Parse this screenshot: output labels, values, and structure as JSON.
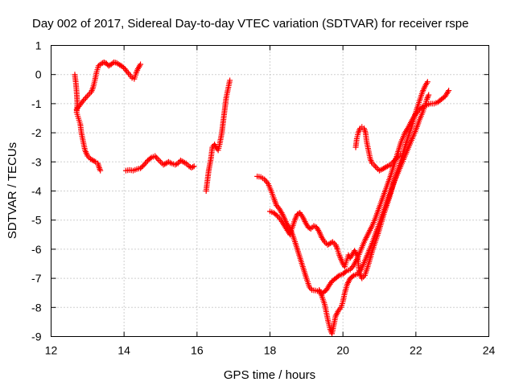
{
  "chart_data": {
    "type": "scatter",
    "title": "Day 002 of 2017, Sidereal Day-to-day VTEC variation (SDTVAR) for receiver rspe",
    "xlabel": "GPS time / hours",
    "ylabel": "SDTVAR / TECUs",
    "xlim": [
      12,
      24
    ],
    "ylim": [
      -9,
      1
    ],
    "xticks": [
      12,
      14,
      16,
      18,
      20,
      22,
      24
    ],
    "yticks": [
      1,
      0,
      -1,
      -2,
      -3,
      -4,
      -5,
      -6,
      -7,
      -8,
      -9
    ],
    "grid": true,
    "marker": "plus",
    "color": "#ff0000",
    "series": [
      {
        "values": [
          [
            12.65,
            0.0
          ],
          [
            12.68,
            -0.3
          ],
          [
            12.7,
            -0.6
          ],
          [
            12.72,
            -1.0
          ],
          [
            12.7,
            -1.3
          ],
          [
            12.75,
            -1.5
          ],
          [
            12.8,
            -1.7
          ],
          [
            12.83,
            -2.0
          ],
          [
            12.88,
            -2.3
          ],
          [
            12.93,
            -2.6
          ],
          [
            13.0,
            -2.8
          ],
          [
            13.08,
            -2.9
          ],
          [
            13.15,
            -2.95
          ],
          [
            13.22,
            -3.0
          ],
          [
            13.28,
            -3.05
          ],
          [
            13.32,
            -3.2
          ],
          [
            13.35,
            -3.3
          ],
          [
            12.7,
            -1.2
          ],
          [
            12.76,
            -1.1
          ],
          [
            12.82,
            -1.0
          ],
          [
            12.88,
            -0.9
          ],
          [
            12.95,
            -0.8
          ],
          [
            13.02,
            -0.7
          ],
          [
            13.1,
            -0.6
          ],
          [
            13.15,
            -0.45
          ],
          [
            13.2,
            -0.2
          ],
          [
            13.25,
            0.1
          ],
          [
            13.3,
            0.3
          ],
          [
            13.38,
            0.38
          ],
          [
            13.45,
            0.42
          ],
          [
            13.52,
            0.38
          ],
          [
            13.58,
            0.3
          ],
          [
            13.65,
            0.35
          ],
          [
            13.72,
            0.42
          ],
          [
            13.8,
            0.4
          ],
          [
            13.88,
            0.33
          ],
          [
            13.95,
            0.28
          ],
          [
            14.02,
            0.2
          ],
          [
            14.08,
            0.1
          ],
          [
            14.15,
            0.0
          ],
          [
            14.22,
            -0.12
          ],
          [
            14.28,
            -0.15
          ],
          [
            14.33,
            0.05
          ],
          [
            14.38,
            0.2
          ],
          [
            14.45,
            0.35
          ]
        ]
      },
      {
        "values": [
          [
            14.05,
            -3.3
          ],
          [
            14.15,
            -3.28
          ],
          [
            14.25,
            -3.3
          ],
          [
            14.35,
            -3.25
          ],
          [
            14.45,
            -3.22
          ],
          [
            14.55,
            -3.1
          ],
          [
            14.65,
            -2.95
          ],
          [
            14.75,
            -2.85
          ],
          [
            14.85,
            -2.8
          ],
          [
            14.92,
            -2.9
          ],
          [
            15.0,
            -3.0
          ],
          [
            15.08,
            -3.1
          ],
          [
            15.15,
            -3.05
          ],
          [
            15.22,
            -3.0
          ],
          [
            15.3,
            -3.05
          ],
          [
            15.4,
            -3.1
          ],
          [
            15.48,
            -3.05
          ],
          [
            15.55,
            -2.95
          ],
          [
            15.62,
            -3.0
          ],
          [
            15.7,
            -3.05
          ],
          [
            15.78,
            -3.15
          ],
          [
            15.85,
            -3.2
          ],
          [
            15.92,
            -3.15
          ]
        ]
      },
      {
        "values": [
          [
            16.25,
            -4.0
          ],
          [
            16.28,
            -3.7
          ],
          [
            16.32,
            -3.3
          ],
          [
            16.38,
            -2.9
          ],
          [
            16.42,
            -2.5
          ],
          [
            16.48,
            -2.4
          ],
          [
            16.52,
            -2.5
          ],
          [
            16.58,
            -2.6
          ],
          [
            16.62,
            -2.4
          ],
          [
            16.68,
            -2.0
          ],
          [
            16.72,
            -1.6
          ],
          [
            16.76,
            -1.2
          ],
          [
            16.8,
            -0.8
          ],
          [
            16.85,
            -0.5
          ],
          [
            16.9,
            -0.2
          ]
        ]
      },
      {
        "values": [
          [
            17.65,
            -3.5
          ],
          [
            17.75,
            -3.52
          ],
          [
            17.85,
            -3.6
          ],
          [
            17.95,
            -3.75
          ],
          [
            18.05,
            -4.05
          ],
          [
            18.12,
            -4.3
          ],
          [
            18.18,
            -4.5
          ],
          [
            18.25,
            -4.6
          ],
          [
            18.32,
            -4.75
          ],
          [
            18.38,
            -4.9
          ],
          [
            18.45,
            -5.1
          ],
          [
            18.5,
            -5.2
          ],
          [
            18.55,
            -5.3
          ],
          [
            18.62,
            -5.5
          ],
          [
            18.7,
            -5.8
          ],
          [
            18.8,
            -6.2
          ],
          [
            18.9,
            -6.6
          ],
          [
            19.0,
            -7.0
          ],
          [
            19.08,
            -7.3
          ],
          [
            19.15,
            -7.4
          ],
          [
            19.25,
            -7.42
          ],
          [
            19.35,
            -7.45
          ],
          [
            19.45,
            -7.5
          ],
          [
            19.55,
            -7.4
          ],
          [
            19.62,
            -7.25
          ],
          [
            19.7,
            -7.1
          ],
          [
            19.8,
            -7.0
          ],
          [
            19.9,
            -6.9
          ],
          [
            20.0,
            -6.85
          ],
          [
            20.1,
            -6.75
          ],
          [
            20.2,
            -6.7
          ],
          [
            20.3,
            -6.55
          ],
          [
            20.4,
            -6.3
          ],
          [
            20.5,
            -6.0
          ],
          [
            20.6,
            -5.7
          ],
          [
            20.7,
            -5.45
          ],
          [
            20.8,
            -5.2
          ],
          [
            20.9,
            -4.9
          ],
          [
            21.0,
            -4.55
          ],
          [
            21.1,
            -4.2
          ],
          [
            21.2,
            -3.85
          ],
          [
            21.3,
            -3.5
          ],
          [
            21.4,
            -3.1
          ],
          [
            21.5,
            -2.7
          ],
          [
            21.6,
            -2.3
          ],
          [
            21.7,
            -2.0
          ],
          [
            21.8,
            -1.8
          ],
          [
            21.9,
            -1.55
          ],
          [
            22.0,
            -1.35
          ],
          [
            22.1,
            -1.2
          ],
          [
            22.2,
            -1.1
          ],
          [
            22.3,
            -1.05
          ],
          [
            22.4,
            -1.0
          ],
          [
            22.5,
            -1.0
          ],
          [
            22.6,
            -0.95
          ],
          [
            22.7,
            -0.85
          ],
          [
            22.8,
            -0.75
          ],
          [
            22.9,
            -0.55
          ]
        ]
      },
      {
        "values": [
          [
            18.0,
            -4.7
          ],
          [
            18.1,
            -4.75
          ],
          [
            18.2,
            -4.85
          ],
          [
            18.3,
            -5.0
          ],
          [
            18.4,
            -5.2
          ],
          [
            18.5,
            -5.4
          ],
          [
            18.55,
            -5.5
          ],
          [
            18.6,
            -5.3
          ],
          [
            18.68,
            -5.0
          ],
          [
            18.75,
            -4.8
          ],
          [
            18.82,
            -4.75
          ],
          [
            18.9,
            -4.9
          ],
          [
            18.98,
            -5.1
          ],
          [
            19.05,
            -5.25
          ],
          [
            19.12,
            -5.3
          ],
          [
            19.2,
            -5.2
          ],
          [
            19.28,
            -5.25
          ],
          [
            19.35,
            -5.4
          ],
          [
            19.42,
            -5.6
          ],
          [
            19.5,
            -5.75
          ],
          [
            19.58,
            -5.85
          ],
          [
            19.65,
            -5.8
          ],
          [
            19.72,
            -5.75
          ],
          [
            19.8,
            -5.85
          ],
          [
            19.85,
            -6.0
          ],
          [
            19.9,
            -6.2
          ],
          [
            19.95,
            -6.35
          ],
          [
            20.0,
            -6.5
          ],
          [
            20.05,
            -6.6
          ],
          [
            20.1,
            -6.4
          ],
          [
            20.15,
            -6.2
          ],
          [
            20.2,
            -6.3
          ],
          [
            20.25,
            -6.2
          ],
          [
            20.32,
            -6.05
          ],
          [
            20.4,
            -6.25
          ],
          [
            20.45,
            -6.8
          ],
          [
            20.52,
            -7.0
          ],
          [
            20.6,
            -6.9
          ],
          [
            20.68,
            -6.6
          ],
          [
            20.75,
            -6.3
          ],
          [
            20.82,
            -6.0
          ],
          [
            20.9,
            -5.7
          ],
          [
            20.98,
            -5.4
          ],
          [
            21.05,
            -5.1
          ],
          [
            21.12,
            -4.8
          ],
          [
            21.2,
            -4.5
          ],
          [
            21.28,
            -4.2
          ],
          [
            21.35,
            -3.9
          ],
          [
            21.42,
            -3.6
          ],
          [
            21.5,
            -3.3
          ],
          [
            21.58,
            -3.0
          ],
          [
            21.65,
            -2.7
          ],
          [
            21.72,
            -2.4
          ],
          [
            21.8,
            -2.1
          ],
          [
            21.88,
            -1.8
          ],
          [
            21.95,
            -1.5
          ],
          [
            22.02,
            -1.2
          ],
          [
            22.1,
            -0.9
          ],
          [
            22.18,
            -0.6
          ],
          [
            22.25,
            -0.4
          ],
          [
            22.32,
            -0.25
          ]
        ]
      },
      {
        "values": [
          [
            19.35,
            -7.4
          ],
          [
            19.42,
            -7.6
          ],
          [
            19.5,
            -7.9
          ],
          [
            19.55,
            -8.2
          ],
          [
            19.6,
            -8.5
          ],
          [
            19.65,
            -8.75
          ],
          [
            19.7,
            -8.9
          ],
          [
            19.75,
            -8.6
          ],
          [
            19.8,
            -8.3
          ],
          [
            19.88,
            -8.1
          ],
          [
            19.95,
            -8.0
          ],
          [
            20.0,
            -7.8
          ],
          [
            20.05,
            -7.5
          ],
          [
            20.12,
            -7.2
          ],
          [
            20.2,
            -7.0
          ],
          [
            20.3,
            -6.9
          ],
          [
            20.4,
            -6.85
          ],
          [
            20.5,
            -6.7
          ],
          [
            20.6,
            -6.4
          ],
          [
            20.7,
            -6.1
          ],
          [
            20.8,
            -5.8
          ],
          [
            20.9,
            -5.45
          ],
          [
            21.0,
            -5.1
          ],
          [
            21.1,
            -4.75
          ],
          [
            21.2,
            -4.4
          ],
          [
            21.3,
            -4.05
          ],
          [
            21.4,
            -3.7
          ],
          [
            21.5,
            -3.4
          ],
          [
            21.6,
            -3.1
          ],
          [
            21.7,
            -2.8
          ],
          [
            21.8,
            -2.5
          ],
          [
            21.9,
            -2.2
          ],
          [
            22.0,
            -1.9
          ],
          [
            22.1,
            -1.55
          ],
          [
            22.2,
            -1.25
          ],
          [
            22.25,
            -1.05
          ],
          [
            22.3,
            -0.85
          ],
          [
            22.35,
            -0.7
          ]
        ]
      },
      {
        "values": [
          [
            20.35,
            -2.5
          ],
          [
            20.38,
            -2.2
          ],
          [
            20.42,
            -2.0
          ],
          [
            20.47,
            -1.85
          ],
          [
            20.52,
            -1.8
          ],
          [
            20.58,
            -1.85
          ],
          [
            20.62,
            -2.0
          ],
          [
            20.65,
            -2.3
          ],
          [
            20.7,
            -2.6
          ],
          [
            20.75,
            -2.9
          ],
          [
            20.8,
            -3.05
          ],
          [
            20.85,
            -3.1
          ],
          [
            20.92,
            -3.2
          ],
          [
            21.0,
            -3.3
          ],
          [
            21.08,
            -3.25
          ],
          [
            21.15,
            -3.2
          ],
          [
            21.22,
            -3.15
          ],
          [
            21.3,
            -3.1
          ],
          [
            21.38,
            -3.0
          ],
          [
            21.45,
            -2.9
          ],
          [
            21.52,
            -2.8
          ],
          [
            21.58,
            -2.75
          ]
        ]
      }
    ]
  }
}
